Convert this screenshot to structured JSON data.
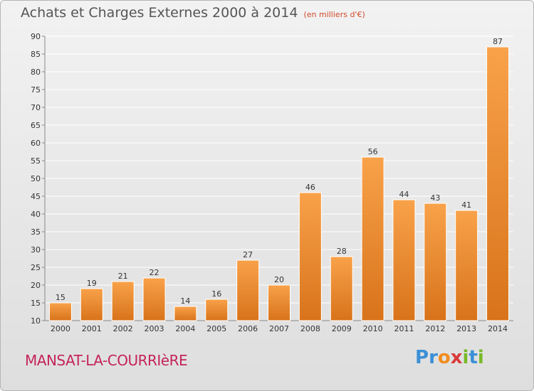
{
  "header": {
    "title": "Achats et Charges Externes 2000 à 2014",
    "subtitle": "(en milliers d'€)"
  },
  "footer": {
    "place": "MANSAT-LA-COURRIèRE",
    "logo_letters": [
      {
        "char": "P",
        "color": "#3b8fd6"
      },
      {
        "char": "r",
        "color": "#3b8fd6"
      },
      {
        "char": "o",
        "color": "#f28c1e"
      },
      {
        "char": "x",
        "color": "#d93a3a"
      },
      {
        "char": "i",
        "color": "#78b928"
      },
      {
        "char": "t",
        "color": "#3b8fd6"
      },
      {
        "char": "i",
        "color": "#78b928"
      }
    ]
  },
  "chart_data": {
    "type": "bar",
    "categories": [
      "2000",
      "2001",
      "2002",
      "2003",
      "2004",
      "2005",
      "2006",
      "2007",
      "2008",
      "2009",
      "2010",
      "2011",
      "2012",
      "2013",
      "2014"
    ],
    "values": [
      15,
      19,
      21,
      22,
      14,
      16,
      27,
      20,
      46,
      28,
      56,
      44,
      43,
      41,
      87
    ],
    "title": "Achats et Charges Externes 2000 à 2014",
    "ylim": [
      10,
      90
    ],
    "yticks": [
      10,
      15,
      20,
      25,
      30,
      35,
      40,
      45,
      50,
      55,
      60,
      65,
      70,
      75,
      80,
      85,
      90
    ],
    "grid": true,
    "bar_color_top": "#f8a24a",
    "bar_color_bottom": "#d8731a"
  }
}
